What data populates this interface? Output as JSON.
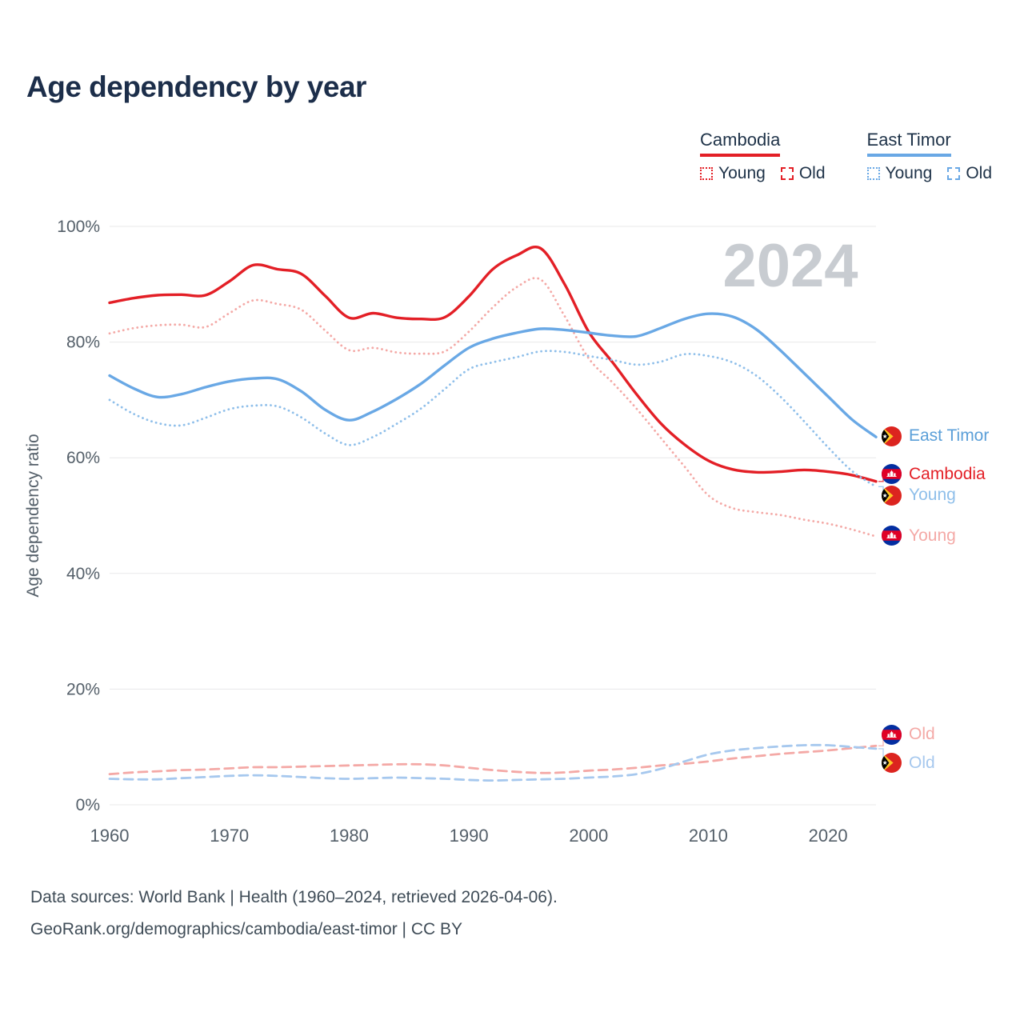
{
  "page": {
    "title": "Age dependency by year",
    "watermark": "2024",
    "footer": {
      "line1": "Data sources: World Bank | Health (1960–2024, retrieved 2026-04-06).",
      "line2": "GeoRank.org/demographics/cambodia/east-timor | CC BY"
    }
  },
  "legend": {
    "groups": [
      {
        "country": "Cambodia",
        "color": "#e31f26",
        "items": [
          {
            "label": "Young",
            "style": "dotted"
          },
          {
            "label": "Old",
            "style": "dashed"
          }
        ]
      },
      {
        "country": "East Timor",
        "color": "#69a8e5",
        "items": [
          {
            "label": "Young",
            "style": "dotted"
          },
          {
            "label": "Old",
            "style": "dashed"
          }
        ]
      }
    ]
  },
  "chart_data": {
    "type": "line",
    "title": "Age dependency by year",
    "xlabel": "",
    "ylabel": "Age dependency ratio",
    "xlim": [
      1960,
      2024
    ],
    "ylim": [
      0,
      100
    ],
    "x_ticks": [
      1960,
      1970,
      1980,
      1990,
      2000,
      2010,
      2020
    ],
    "y_ticks": [
      "0%",
      "20%",
      "40%",
      "60%",
      "80%",
      "100%"
    ],
    "grid": "horizontal",
    "legend_position": "top-right",
    "x": [
      1960,
      1962,
      1964,
      1966,
      1968,
      1970,
      1972,
      1974,
      1976,
      1978,
      1980,
      1982,
      1984,
      1986,
      1988,
      1990,
      1992,
      1994,
      1996,
      1998,
      2000,
      2002,
      2004,
      2006,
      2008,
      2010,
      2012,
      2014,
      2016,
      2018,
      2020,
      2022,
      2024
    ],
    "series": [
      {
        "name": "Cambodia total",
        "color": "#e31f26",
        "dash": "solid",
        "values": [
          86.8,
          87.6,
          88.1,
          88.2,
          88.1,
          90.5,
          93.3,
          92.6,
          91.8,
          88.0,
          84.2,
          85.0,
          84.2,
          84.0,
          84.3,
          87.9,
          92.6,
          95.0,
          96.2,
          90.0,
          81.8,
          76.5,
          71.0,
          66.0,
          62.3,
          59.5,
          58.0,
          57.5,
          57.6,
          57.9,
          57.6,
          57.0,
          55.9
        ]
      },
      {
        "name": "Cambodia young",
        "color": "#f4a9a6",
        "dash": "dotted",
        "values": [
          81.5,
          82.4,
          82.9,
          83.0,
          82.6,
          85.0,
          87.2,
          86.6,
          85.6,
          82.0,
          78.6,
          79.0,
          78.2,
          78.0,
          78.4,
          81.8,
          86.0,
          89.5,
          90.8,
          84.5,
          77.2,
          73.0,
          68.5,
          63.5,
          58.5,
          53.5,
          51.3,
          50.6,
          50.1,
          49.3,
          48.6,
          47.6,
          46.4
        ]
      },
      {
        "name": "Cambodia old",
        "color": "#f4a9a6",
        "dash": "dashed",
        "values": [
          5.3,
          5.6,
          5.8,
          6.0,
          6.1,
          6.3,
          6.5,
          6.5,
          6.6,
          6.7,
          6.8,
          6.9,
          7.0,
          7.0,
          6.8,
          6.4,
          6.0,
          5.7,
          5.5,
          5.6,
          5.9,
          6.1,
          6.4,
          6.8,
          7.1,
          7.5,
          8.0,
          8.4,
          8.8,
          9.1,
          9.4,
          9.8,
          10.2
        ]
      },
      {
        "name": "East Timor total",
        "color": "#69a8e5",
        "dash": "solid",
        "values": [
          74.2,
          72.0,
          70.5,
          71.0,
          72.2,
          73.2,
          73.7,
          73.6,
          71.5,
          68.3,
          66.5,
          68.0,
          70.2,
          72.8,
          76.0,
          79.0,
          80.6,
          81.6,
          82.3,
          82.1,
          81.6,
          81.1,
          81.0,
          82.4,
          84.0,
          84.9,
          84.4,
          82.2,
          78.6,
          74.6,
          70.6,
          66.6,
          63.6
        ]
      },
      {
        "name": "East Timor young",
        "color": "#8fbfea",
        "dash": "dotted",
        "values": [
          70.0,
          67.6,
          66.0,
          65.6,
          66.9,
          68.4,
          69.0,
          68.9,
          67.0,
          64.2,
          62.2,
          63.6,
          65.9,
          68.5,
          71.9,
          75.3,
          76.5,
          77.4,
          78.4,
          78.3,
          77.6,
          76.9,
          76.1,
          76.6,
          77.9,
          77.6,
          76.5,
          74.2,
          70.6,
          66.3,
          61.8,
          57.7,
          55.0
        ]
      },
      {
        "name": "East Timor old",
        "color": "#a6c8ee",
        "dash": "dashed",
        "values": [
          4.5,
          4.4,
          4.4,
          4.6,
          4.8,
          5.0,
          5.1,
          5.0,
          4.8,
          4.6,
          4.5,
          4.6,
          4.7,
          4.6,
          4.5,
          4.3,
          4.2,
          4.3,
          4.4,
          4.5,
          4.7,
          4.9,
          5.3,
          6.2,
          7.5,
          8.7,
          9.4,
          9.8,
          10.1,
          10.3,
          10.3,
          10.0,
          9.7
        ]
      }
    ],
    "end_labels": [
      {
        "text": "East Timor",
        "series": "East Timor total",
        "flag": "east-timor",
        "color": "#5b9fd8"
      },
      {
        "text": "Cambodia",
        "series": "Cambodia total",
        "flag": "cambodia",
        "color": "#e31f26"
      },
      {
        "text": "Young",
        "series": "East Timor young",
        "flag": "east-timor",
        "color": "#8fbfea"
      },
      {
        "text": "Young",
        "series": "Cambodia young",
        "flag": "cambodia",
        "color": "#f4a9a6"
      },
      {
        "text": "Old",
        "series": "Cambodia old",
        "flag": "cambodia",
        "color": "#f4a9a6"
      },
      {
        "text": "Old",
        "series": "East Timor old",
        "flag": "east-timor",
        "color": "#a6c8ee"
      }
    ]
  }
}
